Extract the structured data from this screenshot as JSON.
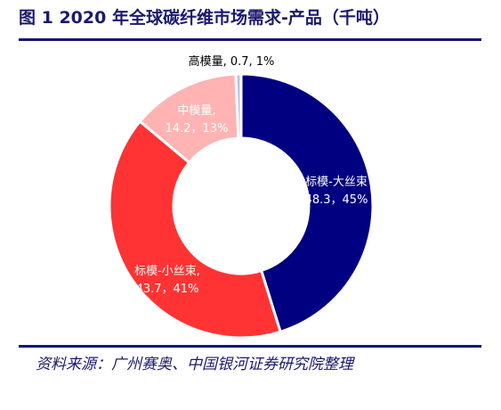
{
  "header": {
    "title": "图 1 2020 年全球碳纤维市场需求-产品（千吨）"
  },
  "footer": {
    "source": "资料来源：广州赛奥、中国银河证券研究院整理"
  },
  "chart_data": {
    "type": "pie",
    "donut": true,
    "title": "图 1 2020 年全球碳纤维市场需求-产品（千吨）",
    "unit": "千吨",
    "categories": [
      "标模-大丝束",
      "标模-小丝束",
      "中模量",
      "高模量"
    ],
    "values": [
      48.3,
      43.7,
      14.2,
      0.7
    ],
    "percents": [
      "45%",
      "41%",
      "13%",
      "1%"
    ],
    "labels": [
      {
        "name": "标模-大丝束",
        "value": "48.3，45%"
      },
      {
        "name": "标模-小丝束,",
        "value": "43.7，41%"
      },
      {
        "name": "中模量,",
        "value": "14.2，13%"
      },
      {
        "name": "高模量,",
        "value": "0.7, 1%"
      }
    ],
    "colors": [
      "#000080",
      "#ff3333",
      "#ffb3b3",
      "#c0c0d8"
    ],
    "legend": "none"
  }
}
